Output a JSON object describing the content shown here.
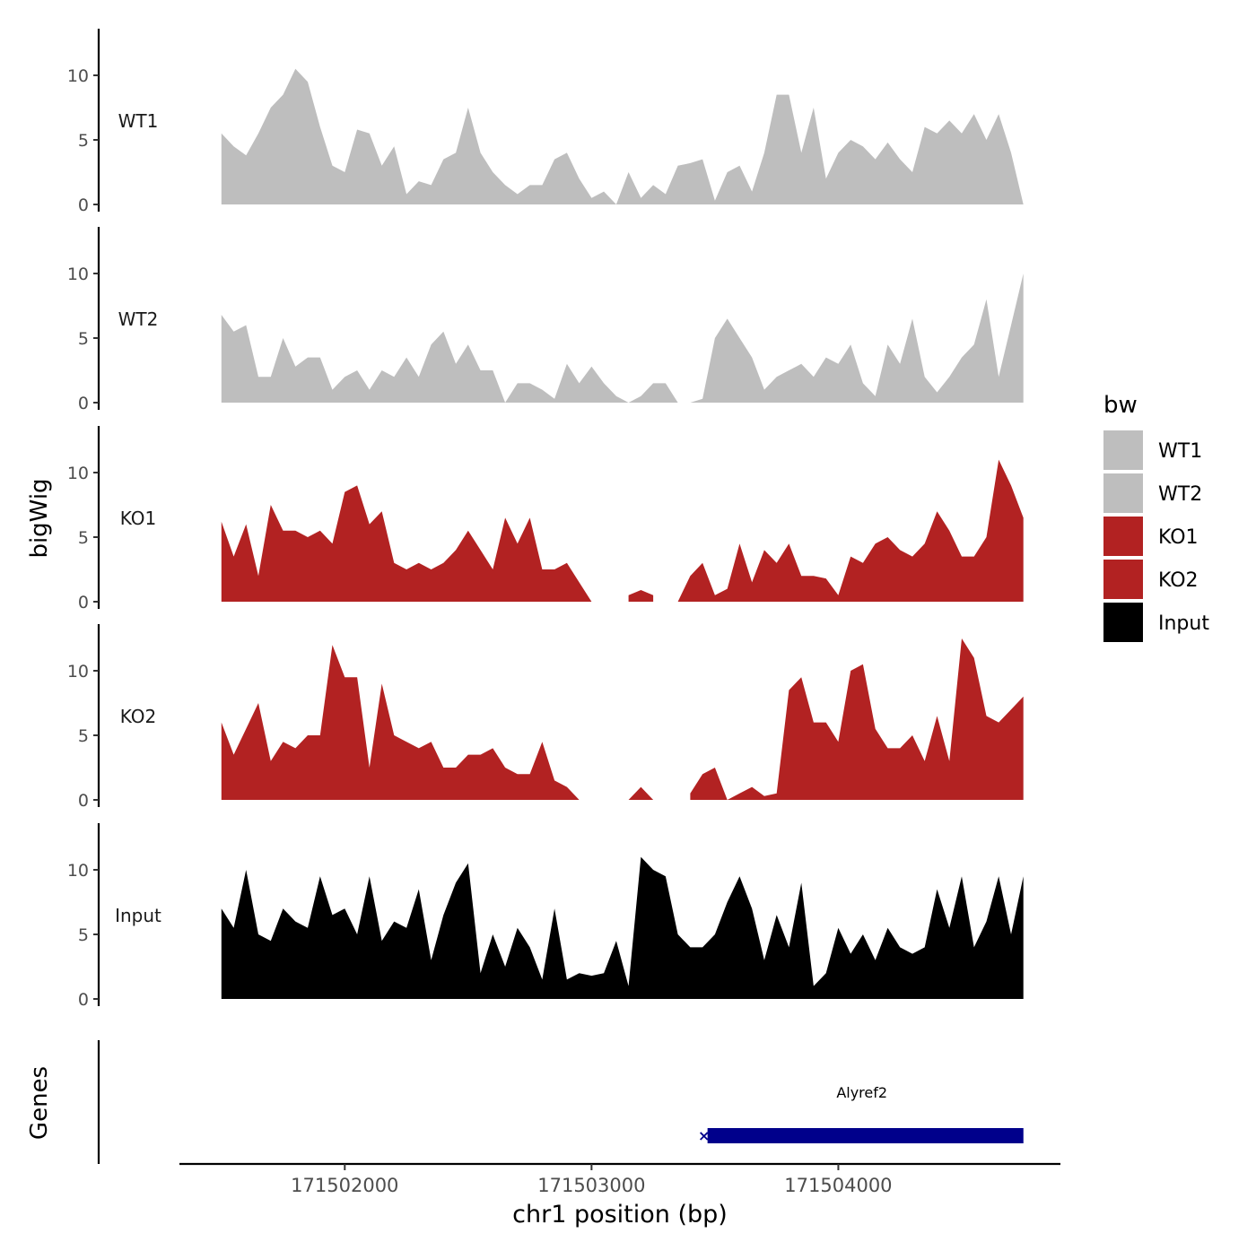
{
  "chart_data": {
    "type": "area",
    "y_axis_title": "bigWig",
    "genes_axis_title": "Genes",
    "x_axis_title": "chr1 position (bp)",
    "x_ticks": [
      171502000,
      171503000,
      171504000
    ],
    "x_tick_labels": [
      "171502000",
      "171503000",
      "171504000"
    ],
    "y_ticks": [
      0,
      5,
      10
    ],
    "y_tick_labels": [
      "0",
      "5",
      "10"
    ],
    "ylim": [
      0,
      14
    ],
    "xlim": [
      171501330,
      171504900
    ],
    "legend": {
      "title": "bw",
      "position": "right",
      "entries": [
        {
          "label": "WT1",
          "color": "#BEBEBE"
        },
        {
          "label": "WT2",
          "color": "#BEBEBE"
        },
        {
          "label": "KO1",
          "color": "#B22222"
        },
        {
          "label": "KO2",
          "color": "#B22222"
        },
        {
          "label": "Input",
          "color": "#000000"
        }
      ]
    },
    "series": [
      {
        "name": "WT1",
        "color": "#BEBEBE",
        "x": [
          171501500,
          171501550,
          171501600,
          171501650,
          171501700,
          171501750,
          171501800,
          171501850,
          171501900,
          171501950,
          171502000,
          171502050,
          171502100,
          171502150,
          171502200,
          171502250,
          171502300,
          171502350,
          171502400,
          171502450,
          171502500,
          171502550,
          171502600,
          171502650,
          171502700,
          171502750,
          171502800,
          171502850,
          171502900,
          171502950,
          171503000,
          171503050,
          171503100,
          171503150,
          171503200,
          171503250,
          171503300,
          171503350,
          171503400,
          171503450,
          171503500,
          171503550,
          171503600,
          171503650,
          171503700,
          171503750,
          171503800,
          171503850,
          171503900,
          171503950,
          171504000,
          171504050,
          171504100,
          171504150,
          171504200,
          171504250,
          171504300,
          171504350,
          171504400,
          171504450,
          171504500,
          171504550,
          171504600,
          171504650,
          171504700,
          171504750
        ],
        "values": [
          5.5,
          4.5,
          3.8,
          5.5,
          7.5,
          8.5,
          10.5,
          9.5,
          6.0,
          3.0,
          2.5,
          5.8,
          5.5,
          3.0,
          4.5,
          0.8,
          1.8,
          1.5,
          3.5,
          4.0,
          7.5,
          4.0,
          2.5,
          1.5,
          0.8,
          1.5,
          1.5,
          3.5,
          4.0,
          2.0,
          0.5,
          1.0,
          0.0,
          2.5,
          0.5,
          1.5,
          0.8,
          3.0,
          3.2,
          3.5,
          0.3,
          2.5,
          3.0,
          1.0,
          4.0,
          8.5,
          8.5,
          4.0,
          7.5,
          2.0,
          4.0,
          5.0,
          4.5,
          3.5,
          4.8,
          3.5,
          2.5,
          6.0,
          5.5,
          6.5,
          5.5,
          7.0,
          5.0,
          7.0,
          4.0,
          0.0
        ]
      },
      {
        "name": "WT2",
        "color": "#BEBEBE",
        "x": [
          171501500,
          171501550,
          171501600,
          171501650,
          171501700,
          171501750,
          171501800,
          171501850,
          171501900,
          171501950,
          171502000,
          171502050,
          171502100,
          171502150,
          171502200,
          171502250,
          171502300,
          171502350,
          171502400,
          171502450,
          171502500,
          171502550,
          171502600,
          171502650,
          171502700,
          171502750,
          171502800,
          171502850,
          171502900,
          171502950,
          171503000,
          171503050,
          171503100,
          171503150,
          171503200,
          171503250,
          171503300,
          171503350,
          171503400,
          171503450,
          171503500,
          171503550,
          171503600,
          171503650,
          171503700,
          171503750,
          171503800,
          171503850,
          171503900,
          171503950,
          171504000,
          171504050,
          171504100,
          171504150,
          171504200,
          171504250,
          171504300,
          171504350,
          171504400,
          171504450,
          171504500,
          171504550,
          171504600,
          171504650,
          171504700,
          171504750
        ],
        "values": [
          6.8,
          5.5,
          6.0,
          2.0,
          2.0,
          5.0,
          2.8,
          3.5,
          3.5,
          1.0,
          2.0,
          2.5,
          1.0,
          2.5,
          2.0,
          3.5,
          2.0,
          4.5,
          5.5,
          3.0,
          4.5,
          2.5,
          2.5,
          0.0,
          1.5,
          1.5,
          1.0,
          0.3,
          3.0,
          1.5,
          2.8,
          1.5,
          0.5,
          0.0,
          0.5,
          1.5,
          1.5,
          0.0,
          0.0,
          0.3,
          5.0,
          6.5,
          5.0,
          3.5,
          1.0,
          2.0,
          2.5,
          3.0,
          2.0,
          3.5,
          3.0,
          4.5,
          1.5,
          0.5,
          4.5,
          3.0,
          6.5,
          2.0,
          0.8,
          2.0,
          3.5,
          4.5,
          8.0,
          2.0,
          6.0,
          10.0
        ]
      },
      {
        "name": "KO1",
        "color": "#B22222",
        "x": [
          171501500,
          171501550,
          171501600,
          171501650,
          171501700,
          171501750,
          171501800,
          171501850,
          171501900,
          171501950,
          171502000,
          171502050,
          171502100,
          171502150,
          171502200,
          171502250,
          171502300,
          171502350,
          171502400,
          171502450,
          171502500,
          171502550,
          171502600,
          171502650,
          171502700,
          171502750,
          171502800,
          171502850,
          171502900,
          171502950,
          171503000,
          171503050,
          171503100,
          171503150,
          171503200,
          171503250,
          171503300,
          171503350,
          171503400,
          171503450,
          171503500,
          171503550,
          171503600,
          171503650,
          171503700,
          171503750,
          171503800,
          171503850,
          171503900,
          171503950,
          171504000,
          171504050,
          171504100,
          171504150,
          171504200,
          171504250,
          171504300,
          171504350,
          171504400,
          171504450,
          171504500,
          171504550,
          171504600,
          171504650,
          171504700,
          171504750
        ],
        "values": [
          6.2,
          3.5,
          6.0,
          2.0,
          7.5,
          5.5,
          5.5,
          5.0,
          5.5,
          4.5,
          8.5,
          9.0,
          6.0,
          7.0,
          3.0,
          2.5,
          3.0,
          2.5,
          3.0,
          4.0,
          5.5,
          4.0,
          2.5,
          6.5,
          4.5,
          6.5,
          2.5,
          2.5,
          3.0,
          1.5,
          0.0,
          null,
          null,
          0.5,
          0.9,
          0.5,
          null,
          0.0,
          2.0,
          3.0,
          0.5,
          1.0,
          4.5,
          1.5,
          4.0,
          3.0,
          4.5,
          2.0,
          2.0,
          1.8,
          0.5,
          3.5,
          3.0,
          4.5,
          5.0,
          4.0,
          3.5,
          4.5,
          7.0,
          5.5,
          3.5,
          3.5,
          5.0,
          11.0,
          9.0,
          6.5
        ]
      },
      {
        "name": "KO2",
        "color": "#B22222",
        "x": [
          171501500,
          171501550,
          171501600,
          171501650,
          171501700,
          171501750,
          171501800,
          171501850,
          171501900,
          171501950,
          171502000,
          171502050,
          171502100,
          171502150,
          171502200,
          171502250,
          171502300,
          171502350,
          171502400,
          171502450,
          171502500,
          171502550,
          171502600,
          171502650,
          171502700,
          171502750,
          171502800,
          171502850,
          171502900,
          171502950,
          171503000,
          171503050,
          171503100,
          171503150,
          171503200,
          171503250,
          171503300,
          171503350,
          171503400,
          171503450,
          171503500,
          171503550,
          171503600,
          171503650,
          171503700,
          171503750,
          171503800,
          171503850,
          171503900,
          171503950,
          171504000,
          171504050,
          171504100,
          171504150,
          171504200,
          171504250,
          171504300,
          171504350,
          171504400,
          171504450,
          171504500,
          171504550,
          171504600,
          171504650,
          171504700,
          171504750
        ],
        "values": [
          6.0,
          3.5,
          5.5,
          7.5,
          3.0,
          4.5,
          4.0,
          5.0,
          5.0,
          12.0,
          9.5,
          9.5,
          2.5,
          9.0,
          5.0,
          4.5,
          4.0,
          4.5,
          2.5,
          2.5,
          3.5,
          3.5,
          4.0,
          2.5,
          2.0,
          2.0,
          4.5,
          1.5,
          1.0,
          0.0,
          null,
          null,
          null,
          0.0,
          1.0,
          0.0,
          null,
          null,
          0.5,
          2.0,
          2.5,
          0.0,
          0.5,
          1.0,
          0.3,
          0.5,
          8.5,
          9.5,
          6.0,
          6.0,
          4.5,
          10.0,
          10.5,
          5.5,
          4.0,
          4.0,
          5.0,
          3.0,
          6.5,
          3.0,
          12.5,
          11.0,
          6.5,
          6.0,
          7.0,
          8.0
        ]
      },
      {
        "name": "Input",
        "color": "#000000",
        "x": [
          171501500,
          171501550,
          171501600,
          171501650,
          171501700,
          171501750,
          171501800,
          171501850,
          171501900,
          171501950,
          171502000,
          171502050,
          171502100,
          171502150,
          171502200,
          171502250,
          171502300,
          171502350,
          171502400,
          171502450,
          171502500,
          171502550,
          171502600,
          171502650,
          171502700,
          171502750,
          171502800,
          171502850,
          171502900,
          171502950,
          171503000,
          171503050,
          171503100,
          171503150,
          171503200,
          171503250,
          171503300,
          171503350,
          171503400,
          171503450,
          171503500,
          171503550,
          171503600,
          171503650,
          171503700,
          171503750,
          171503800,
          171503850,
          171503900,
          171503950,
          171504000,
          171504050,
          171504100,
          171504150,
          171504200,
          171504250,
          171504300,
          171504350,
          171504400,
          171504450,
          171504500,
          171504550,
          171504600,
          171504650,
          171504700,
          171504750
        ],
        "values": [
          7.0,
          5.5,
          10.0,
          5.0,
          4.5,
          7.0,
          6.0,
          5.5,
          9.5,
          6.5,
          7.0,
          5.0,
          9.5,
          4.5,
          6.0,
          5.5,
          8.5,
          3.0,
          6.5,
          9.0,
          10.5,
          2.0,
          5.0,
          2.5,
          5.5,
          4.0,
          1.5,
          7.0,
          1.5,
          2.0,
          1.8,
          2.0,
          4.5,
          1.0,
          11.0,
          10.0,
          9.5,
          5.0,
          4.0,
          4.0,
          5.0,
          7.5,
          9.5,
          7.0,
          3.0,
          6.5,
          4.0,
          9.0,
          1.0,
          2.0,
          5.5,
          3.5,
          5.0,
          3.0,
          5.5,
          4.0,
          3.5,
          4.0,
          8.5,
          5.5,
          9.5,
          4.0,
          6.0,
          9.5,
          5.0,
          9.5
        ]
      }
    ],
    "genes": [
      {
        "name": "Alyref2",
        "start": 171503470,
        "end": 171504750,
        "color": "#00008B"
      }
    ]
  }
}
